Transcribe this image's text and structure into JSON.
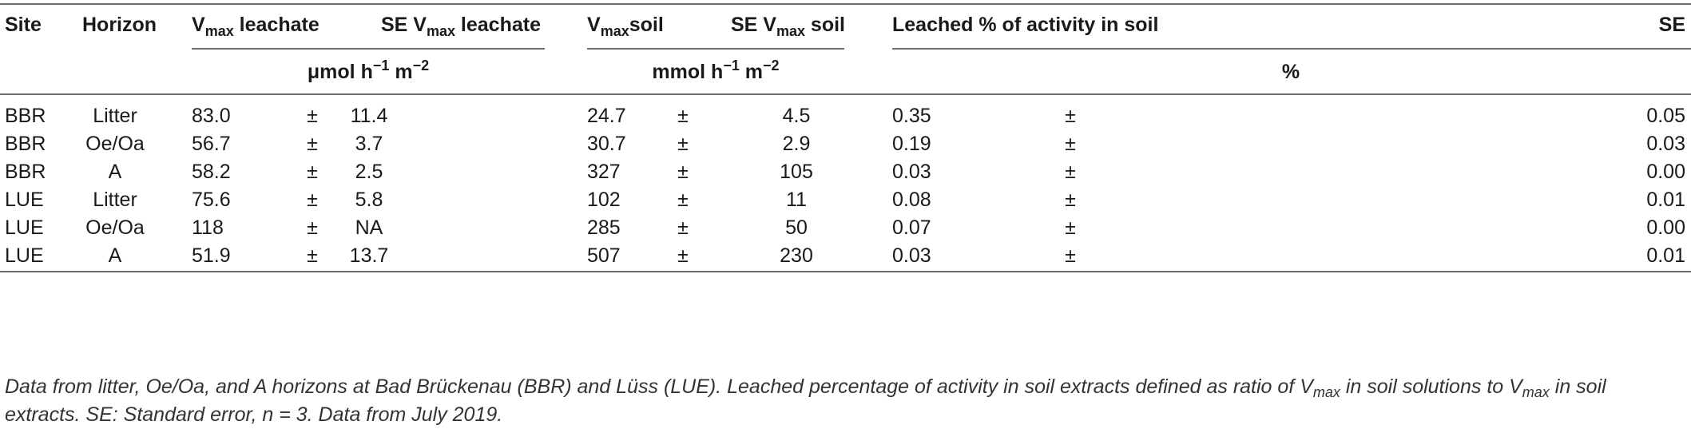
{
  "header": {
    "site": "Site",
    "horizon": "Horizon",
    "vmax_letter": "V",
    "max_sub": "max",
    "leachate_word": " leachate",
    "se_prefix": "SE V",
    "soil_word": "soil",
    "soil_word_spaced": " soil",
    "leached_pct": "Leached % of activity in soil",
    "se": "SE"
  },
  "units": {
    "leachate_unit_a": "μmol h",
    "leachate_unit_b": " m",
    "soil_unit_a": "mmol h",
    "soil_unit_b": " m",
    "exp_neg1": "−1",
    "exp_neg2": "−2",
    "percent": "%"
  },
  "pm": "±",
  "rows": [
    {
      "site": "BBR",
      "horizon": "Litter",
      "v_leach": "83.0",
      "se_leach": "11.4",
      "v_soil": "24.7",
      "se_soil": "4.5",
      "pct": "0.35",
      "se_pct": "0.05"
    },
    {
      "site": "BBR",
      "horizon": "Oe/Oa",
      "v_leach": "56.7",
      "se_leach": "3.7",
      "v_soil": "30.7",
      "se_soil": "2.9",
      "pct": "0.19",
      "se_pct": "0.03"
    },
    {
      "site": "BBR",
      "horizon": "A",
      "v_leach": "58.2",
      "se_leach": "2.5",
      "v_soil": "327",
      "se_soil": "105",
      "pct": "0.03",
      "se_pct": "0.00"
    },
    {
      "site": "LUE",
      "horizon": "Litter",
      "v_leach": "75.6",
      "se_leach": "5.8",
      "v_soil": "102",
      "se_soil": "11",
      "pct": "0.08",
      "se_pct": "0.01"
    },
    {
      "site": "LUE",
      "horizon": "Oe/Oa",
      "v_leach": "118",
      "se_leach": "NA",
      "v_soil": "285",
      "se_soil": "50",
      "pct": "0.07",
      "se_pct": "0.00"
    },
    {
      "site": "LUE",
      "horizon": "A",
      "v_leach": "51.9",
      "se_leach": "13.7",
      "v_soil": "507",
      "se_soil": "230",
      "pct": "0.03",
      "se_pct": "0.01"
    }
  ],
  "caption": {
    "part1": "Data from litter, Oe/Oa, and A horizons at Bad Brückenau (BBR) and Lüss (LUE). Leached percentage of activity in soil extracts defined as ratio of V",
    "part2": " in soil solutions to V",
    "part3": " in soil extracts. SE: Standard error, n = 3. Data from July 2019."
  }
}
